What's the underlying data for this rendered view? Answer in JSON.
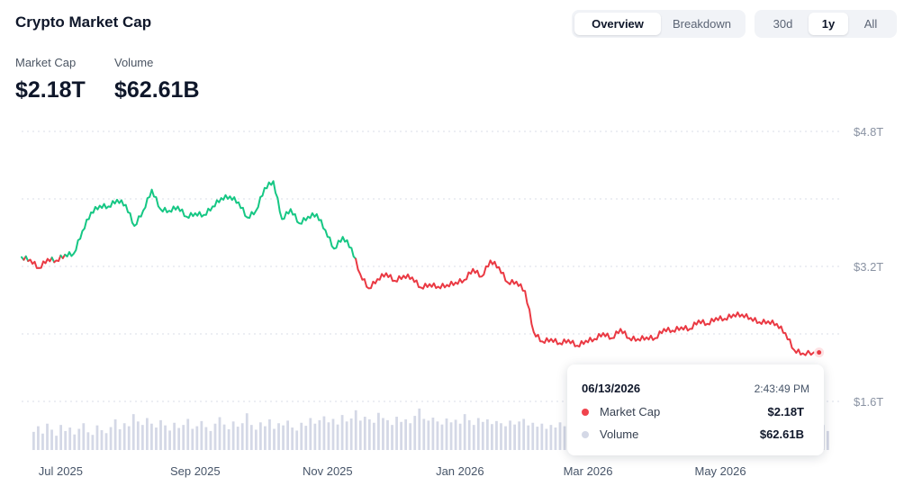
{
  "header": {
    "title": "Crypto Market Cap"
  },
  "view_tabs": [
    {
      "label": "Overview",
      "active": true
    },
    {
      "label": "Breakdown",
      "active": false
    }
  ],
  "range_tabs": [
    {
      "label": "30d",
      "active": false
    },
    {
      "label": "1y",
      "active": true
    },
    {
      "label": "All",
      "active": false
    }
  ],
  "stats": {
    "market_cap": {
      "label": "Market Cap",
      "value": "$2.18T"
    },
    "volume": {
      "label": "Volume",
      "value": "$62.61B"
    }
  },
  "tooltip": {
    "date": "06/13/2026",
    "time": "2:43:49 PM",
    "rows": [
      {
        "label": "Market Cap",
        "value": "$2.18T",
        "color": "#f0434d"
      },
      {
        "label": "Volume",
        "value": "$62.61B",
        "color": "#d4d8e6"
      }
    ]
  },
  "colors": {
    "up": "#16c784",
    "down": "#ea3943",
    "volume": "#d4d8e6",
    "grid": "#d9dee7",
    "axis_text": "#8a93a3"
  },
  "chart_data": {
    "type": "line",
    "title": "",
    "ylabel": "",
    "ylim": [
      1.6,
      4.8
    ],
    "y_ticks": [
      {
        "value": 1.6,
        "label": "$1.6T"
      },
      {
        "value": 3.2,
        "label": "$3.2T"
      },
      {
        "value": 4.8,
        "label": "$4.8T"
      }
    ],
    "x_ticks": [
      {
        "date": "2025-07-01",
        "label": "Jul 2025"
      },
      {
        "date": "2025-09-01",
        "label": "Sep 2025"
      },
      {
        "date": "2025-11-01",
        "label": "Nov 2025"
      },
      {
        "date": "2026-01-01",
        "label": "Jan 2026"
      },
      {
        "date": "2026-03-01",
        "label": "Mar 2026"
      },
      {
        "date": "2026-05-01",
        "label": "May 2026"
      }
    ],
    "baseline_value": 3.3,
    "series": [
      {
        "name": "Market Cap",
        "unit": "T USD",
        "points": [
          [
            "2025-06-13",
            3.31
          ],
          [
            "2025-06-17",
            3.28
          ],
          [
            "2025-06-21",
            3.18
          ],
          [
            "2025-06-25",
            3.29
          ],
          [
            "2025-06-29",
            3.27
          ],
          [
            "2025-07-03",
            3.34
          ],
          [
            "2025-07-07",
            3.35
          ],
          [
            "2025-07-11",
            3.62
          ],
          [
            "2025-07-15",
            3.84
          ],
          [
            "2025-07-19",
            3.92
          ],
          [
            "2025-07-23",
            3.91
          ],
          [
            "2025-07-27",
            3.99
          ],
          [
            "2025-07-31",
            3.93
          ],
          [
            "2025-08-04",
            3.68
          ],
          [
            "2025-08-08",
            3.86
          ],
          [
            "2025-08-12",
            4.11
          ],
          [
            "2025-08-16",
            3.88
          ],
          [
            "2025-08-20",
            3.86
          ],
          [
            "2025-08-24",
            3.91
          ],
          [
            "2025-08-28",
            3.79
          ],
          [
            "2025-09-01",
            3.83
          ],
          [
            "2025-09-05",
            3.81
          ],
          [
            "2025-09-09",
            3.91
          ],
          [
            "2025-09-13",
            4.01
          ],
          [
            "2025-09-17",
            4.03
          ],
          [
            "2025-09-21",
            3.96
          ],
          [
            "2025-09-25",
            3.78
          ],
          [
            "2025-09-29",
            3.86
          ],
          [
            "2025-10-03",
            4.13
          ],
          [
            "2025-10-07",
            4.21
          ],
          [
            "2025-10-11",
            3.76
          ],
          [
            "2025-10-15",
            3.88
          ],
          [
            "2025-10-19",
            3.71
          ],
          [
            "2025-10-23",
            3.79
          ],
          [
            "2025-10-27",
            3.82
          ],
          [
            "2025-10-31",
            3.63
          ],
          [
            "2025-11-04",
            3.41
          ],
          [
            "2025-11-08",
            3.55
          ],
          [
            "2025-11-12",
            3.42
          ],
          [
            "2025-11-16",
            3.11
          ],
          [
            "2025-11-20",
            2.94
          ],
          [
            "2025-11-24",
            3.05
          ],
          [
            "2025-11-28",
            3.12
          ],
          [
            "2025-12-02",
            3.03
          ],
          [
            "2025-12-06",
            3.09
          ],
          [
            "2025-12-10",
            3.07
          ],
          [
            "2025-12-14",
            2.95
          ],
          [
            "2025-12-18",
            2.99
          ],
          [
            "2025-12-22",
            2.96
          ],
          [
            "2025-12-26",
            2.98
          ],
          [
            "2025-12-30",
            3.01
          ],
          [
            "2026-01-03",
            3.04
          ],
          [
            "2026-01-07",
            3.17
          ],
          [
            "2026-01-11",
            3.08
          ],
          [
            "2026-01-15",
            3.27
          ],
          [
            "2026-01-19",
            3.19
          ],
          [
            "2026-01-23",
            3.01
          ],
          [
            "2026-01-27",
            3.02
          ],
          [
            "2026-01-31",
            2.91
          ],
          [
            "2026-02-04",
            2.42
          ],
          [
            "2026-02-08",
            2.31
          ],
          [
            "2026-02-12",
            2.34
          ],
          [
            "2026-02-16",
            2.29
          ],
          [
            "2026-02-20",
            2.33
          ],
          [
            "2026-02-24",
            2.26
          ],
          [
            "2026-02-28",
            2.32
          ],
          [
            "2026-03-04",
            2.34
          ],
          [
            "2026-03-08",
            2.41
          ],
          [
            "2026-03-12",
            2.35
          ],
          [
            "2026-03-16",
            2.46
          ],
          [
            "2026-03-20",
            2.35
          ],
          [
            "2026-03-24",
            2.34
          ],
          [
            "2026-03-28",
            2.36
          ],
          [
            "2026-04-01",
            2.35
          ],
          [
            "2026-04-05",
            2.46
          ],
          [
            "2026-04-09",
            2.44
          ],
          [
            "2026-04-13",
            2.48
          ],
          [
            "2026-04-17",
            2.46
          ],
          [
            "2026-04-21",
            2.56
          ],
          [
            "2026-04-25",
            2.52
          ],
          [
            "2026-04-29",
            2.59
          ],
          [
            "2026-05-03",
            2.58
          ],
          [
            "2026-05-07",
            2.63
          ],
          [
            "2026-05-11",
            2.63
          ],
          [
            "2026-05-15",
            2.59
          ],
          [
            "2026-05-19",
            2.54
          ],
          [
            "2026-05-23",
            2.55
          ],
          [
            "2026-05-27",
            2.52
          ],
          [
            "2026-05-31",
            2.41
          ],
          [
            "2026-06-04",
            2.21
          ],
          [
            "2026-06-08",
            2.17
          ],
          [
            "2026-06-13",
            2.18
          ]
        ]
      },
      {
        "name": "Volume",
        "unit": "relative",
        "values": [
          0.42,
          0.55,
          0.38,
          0.61,
          0.47,
          0.33,
          0.58,
          0.44,
          0.52,
          0.36,
          0.49,
          0.62,
          0.41,
          0.35,
          0.57,
          0.46,
          0.39,
          0.53,
          0.71,
          0.48,
          0.62,
          0.55,
          0.83,
          0.66,
          0.58,
          0.74,
          0.61,
          0.52,
          0.69,
          0.57,
          0.45,
          0.63,
          0.51,
          0.58,
          0.72,
          0.49,
          0.55,
          0.67,
          0.53,
          0.44,
          0.61,
          0.76,
          0.59,
          0.48,
          0.66,
          0.54,
          0.62,
          0.85,
          0.58,
          0.47,
          0.64,
          0.55,
          0.71,
          0.49,
          0.62,
          0.57,
          0.68,
          0.52,
          0.45,
          0.63,
          0.56,
          0.74,
          0.61,
          0.69,
          0.78,
          0.64,
          0.72,
          0.59,
          0.81,
          0.66,
          0.73,
          0.92,
          0.68,
          0.77,
          0.71,
          0.63,
          0.86,
          0.74,
          0.69,
          0.58,
          0.77,
          0.65,
          0.71,
          0.62,
          0.79,
          0.96,
          0.72,
          0.68,
          0.75,
          0.66,
          0.59,
          0.73,
          0.64,
          0.7,
          0.61,
          0.83,
          0.69,
          0.58,
          0.74,
          0.65,
          0.71,
          0.6,
          0.67,
          0.62,
          0.55,
          0.68,
          0.59,
          0.66,
          0.72,
          0.57,
          0.63,
          0.54,
          0.61,
          0.49,
          0.58,
          0.52,
          0.64,
          0.55,
          0.47,
          0.6,
          0.51,
          0.45,
          0.57,
          0.48,
          0.53,
          0.44,
          0.5,
          0.42,
          0.56,
          0.47,
          0.52,
          0.41,
          0.46,
          0.38,
          0.49,
          0.43,
          0.4,
          0.36,
          0.45,
          0.39,
          0.34,
          0.42,
          0.37,
          0.31,
          0.4,
          0.35,
          0.38,
          0.33,
          0.29,
          0.36,
          0.32,
          0.27,
          0.34,
          0.3,
          0.37,
          0.26,
          0.33,
          0.29,
          0.35,
          0.31,
          0.28,
          0.34,
          0.3,
          0.39,
          0.33,
          0.36,
          0.42,
          0.38,
          0.47,
          0.41,
          0.55,
          0.46,
          0.61,
          0.5,
          0.58,
          0.44
        ]
      }
    ],
    "highlight": {
      "date": "2026-06-13",
      "series": "Market Cap",
      "value": 2.18
    }
  }
}
